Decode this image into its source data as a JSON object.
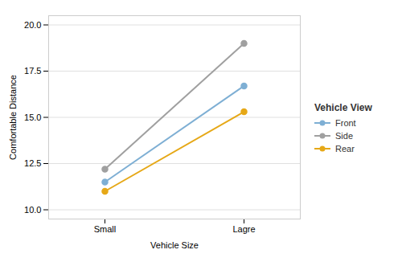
{
  "chart_data": {
    "type": "line",
    "categories": [
      "Small",
      "Lagre"
    ],
    "series": [
      {
        "name": "Front",
        "color": "#7eafd4",
        "values": [
          11.5,
          16.7
        ]
      },
      {
        "name": "Side",
        "color": "#a0a0a0",
        "values": [
          12.2,
          19.0
        ]
      },
      {
        "name": "Rear",
        "color": "#e6a817",
        "values": [
          11.0,
          15.3
        ]
      }
    ],
    "xlabel": "Vehicle Size",
    "ylabel": "Comfortable Distance",
    "legend_title": "Vehicle View",
    "ylim": [
      9.5,
      20.5
    ],
    "yticks": [
      {
        "value": 10,
        "label": "10.0"
      },
      12.5,
      {
        "value": 15,
        "label": "15.0"
      },
      17.5,
      {
        "value": 20,
        "label": "20.0"
      }
    ],
    "grid": true,
    "legend": "right",
    "marker": "circle"
  }
}
